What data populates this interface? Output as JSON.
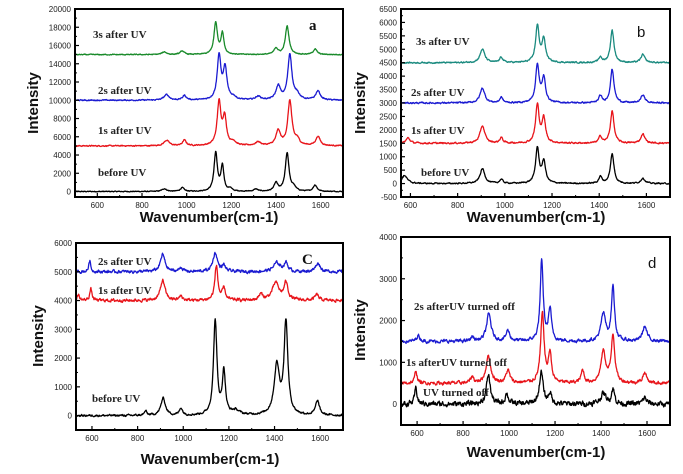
{
  "chart_data": [
    {
      "type": "line",
      "panel": "a",
      "xlabel": "Wavenumber(cm-1)",
      "ylabel": "Intensity",
      "xlim": [
        500,
        1700
      ],
      "ylim": [
        -600,
        20000
      ],
      "xticks": [
        600,
        800,
        1000,
        1200,
        1400,
        1600
      ],
      "yticks": [
        0,
        2000,
        4000,
        6000,
        8000,
        10000,
        12000,
        14000,
        16000,
        18000,
        20000
      ],
      "xtick_labels": [
        "600",
        "800",
        "1000",
        "1200",
        "1400",
        "1600"
      ],
      "ytick_labels": [
        "0",
        "2000",
        "4000",
        "6000",
        "8000",
        "10000",
        "12000",
        "14000",
        "16000",
        "18000",
        "20000"
      ],
      "series": [
        {
          "name": "before UV",
          "color": "#000000",
          "baseline": 0,
          "noise": 80,
          "peaks": [
            [
              900,
              300,
              12
            ],
            [
              980,
              400,
              10
            ],
            [
              1130,
              4200,
              9
            ],
            [
              1160,
              2700,
              8
            ],
            [
              1195,
              300,
              8
            ],
            [
              1310,
              250,
              10
            ],
            [
              1400,
              900,
              10
            ],
            [
              1450,
              4200,
              10
            ],
            [
              1480,
              400,
              10
            ],
            [
              1575,
              700,
              10
            ]
          ]
        },
        {
          "name": "1s after UV",
          "color": "#e8141a",
          "baseline": 5000,
          "noise": 110,
          "peaks": [
            [
              910,
              600,
              14
            ],
            [
              990,
              600,
              10
            ],
            [
              1145,
              4700,
              10
            ],
            [
              1170,
              3000,
              10
            ],
            [
              1210,
              400,
              12
            ],
            [
              1320,
              400,
              14
            ],
            [
              1410,
              1600,
              12
            ],
            [
              1462,
              4900,
              11
            ],
            [
              1495,
              600,
              12
            ],
            [
              1588,
              1000,
              12
            ]
          ]
        },
        {
          "name": "2s after UV",
          "color": "#1b1bd1",
          "baseline": 10000,
          "noise": 110,
          "peaks": [
            [
              910,
              600,
              14
            ],
            [
              990,
              500,
              10
            ],
            [
              1145,
              4800,
              10
            ],
            [
              1172,
              3400,
              10
            ],
            [
              1210,
              300,
              12
            ],
            [
              1320,
              400,
              14
            ],
            [
              1410,
              1500,
              12
            ],
            [
              1462,
              5000,
              11
            ],
            [
              1495,
              600,
              12
            ],
            [
              1588,
              1000,
              12
            ]
          ]
        },
        {
          "name": "3s after UV",
          "color": "#198a2a",
          "baseline": 15000,
          "noise": 90,
          "peaks": [
            [
              900,
              300,
              12
            ],
            [
              980,
              400,
              10
            ],
            [
              1130,
              3500,
              9
            ],
            [
              1160,
              2300,
              8
            ],
            [
              1400,
              700,
              10
            ],
            [
              1450,
              3100,
              10
            ],
            [
              1575,
              600,
              10
            ]
          ]
        }
      ],
      "annotation": "a"
    },
    {
      "type": "line",
      "panel": "b",
      "xlabel": "Wavenumber(cm-1)",
      "ylabel": "Intensity",
      "xlim": [
        560,
        1700
      ],
      "ylim": [
        -500,
        6500
      ],
      "xticks": [
        600,
        800,
        1000,
        1200,
        1400,
        1600
      ],
      "yticks": [
        -500,
        0,
        500,
        1000,
        1500,
        2000,
        2500,
        3000,
        3500,
        4000,
        4500,
        5000,
        5500,
        6000,
        6500
      ],
      "xtick_labels": [
        "600",
        "800",
        "1000",
        "1200",
        "1400",
        "1600"
      ],
      "ytick_labels": [
        "-500",
        "0",
        "500",
        "1000",
        "1500",
        "2000",
        "2500",
        "3000",
        "3500",
        "4000",
        "4500",
        "5000",
        "5500",
        "6000",
        "6500"
      ],
      "series": [
        {
          "name": "before UV",
          "color": "#000000",
          "baseline": 0,
          "noise": 40,
          "peaks": [
            [
              575,
              300,
              14
            ],
            [
              905,
              550,
              12
            ],
            [
              985,
              150,
              8
            ],
            [
              1138,
              1300,
              9
            ],
            [
              1165,
              800,
              9
            ],
            [
              1405,
              250,
              8
            ],
            [
              1455,
              1100,
              9
            ],
            [
              1585,
              200,
              10
            ]
          ]
        },
        {
          "name": "1s after UV",
          "color": "#e8141a",
          "baseline": 1500,
          "noise": 50,
          "peaks": [
            [
              590,
              200,
              10
            ],
            [
              905,
              650,
              12
            ],
            [
              985,
              200,
              8
            ],
            [
              1138,
              1400,
              9
            ],
            [
              1165,
              900,
              9
            ],
            [
              1405,
              250,
              8
            ],
            [
              1455,
              1200,
              9
            ],
            [
              1585,
              350,
              10
            ]
          ]
        },
        {
          "name": "2s after UV",
          "color": "#1b1bd1",
          "baseline": 3000,
          "noise": 50,
          "peaks": [
            [
              905,
              550,
              12
            ],
            [
              985,
              200,
              8
            ],
            [
              1138,
              1400,
              9
            ],
            [
              1165,
              900,
              9
            ],
            [
              1405,
              250,
              8
            ],
            [
              1455,
              1250,
              9
            ],
            [
              1585,
              300,
              10
            ]
          ]
        },
        {
          "name": "3s after UV",
          "color": "#1a8a7f",
          "baseline": 4500,
          "noise": 45,
          "peaks": [
            [
              905,
              500,
              12
            ],
            [
              985,
              200,
              8
            ],
            [
              1138,
              1350,
              9
            ],
            [
              1165,
              850,
              9
            ],
            [
              1405,
              200,
              8
            ],
            [
              1455,
              1200,
              9
            ],
            [
              1585,
              300,
              10
            ]
          ]
        }
      ],
      "annotation": "b"
    },
    {
      "type": "line",
      "panel": "c",
      "xlabel": "Wavenumber(cm-1)",
      "ylabel": "Intensity",
      "xlim": [
        530,
        1700
      ],
      "ylim": [
        -500,
        6000
      ],
      "xticks": [
        600,
        800,
        1000,
        1200,
        1400,
        1600
      ],
      "yticks": [
        0,
        1000,
        2000,
        3000,
        4000,
        5000,
        6000
      ],
      "xtick_labels": [
        "600",
        "800",
        "1000",
        "1200",
        "1400",
        "1600"
      ],
      "ytick_labels": [
        "0",
        "1000",
        "2000",
        "3000",
        "4000",
        "5000",
        "6000"
      ],
      "series": [
        {
          "name": "before UV",
          "color": "#000000",
          "baseline": 0,
          "noise": 60,
          "peaks": [
            [
              835,
              150,
              6
            ],
            [
              912,
              600,
              12
            ],
            [
              990,
              250,
              8
            ],
            [
              1140,
              3300,
              9
            ],
            [
              1178,
              1500,
              8
            ],
            [
              1230,
              150,
              20
            ],
            [
              1410,
              1700,
              14
            ],
            [
              1450,
              3200,
              10
            ],
            [
              1588,
              500,
              10
            ]
          ]
        },
        {
          "name": "1s after UV",
          "color": "#e8141a",
          "baseline": 4000,
          "noise": 90,
          "peaks": [
            [
              540,
              200,
              6
            ],
            [
              595,
              400,
              6
            ],
            [
              910,
              700,
              12
            ],
            [
              990,
              150,
              8
            ],
            [
              1145,
              1200,
              8
            ],
            [
              1178,
              400,
              8
            ],
            [
              1340,
              200,
              10
            ],
            [
              1405,
              600,
              18
            ],
            [
              1450,
              600,
              10
            ],
            [
              1585,
              200,
              10
            ]
          ]
        },
        {
          "name": "2s after UV",
          "color": "#1b1bd1",
          "baseline": 5000,
          "noise": 90,
          "peaks": [
            [
              590,
              400,
              5
            ],
            [
              910,
              600,
              12
            ],
            [
              990,
              150,
              8
            ],
            [
              1140,
              650,
              12
            ],
            [
              1178,
              200,
              8
            ],
            [
              1410,
              300,
              18
            ],
            [
              1450,
              300,
              10
            ],
            [
              1590,
              300,
              12
            ]
          ]
        }
      ],
      "annotation": "C"
    },
    {
      "type": "line",
      "panel": "d",
      "xlabel": "Wavenumber(cm-1)",
      "ylabel": "Intensity",
      "xlim": [
        530,
        1700
      ],
      "ylim": [
        -500,
        4000
      ],
      "xticks": [
        600,
        800,
        1000,
        1200,
        1400,
        1600
      ],
      "yticks": [
        0,
        1000,
        2000,
        3000,
        4000
      ],
      "xtick_labels": [
        "600",
        "800",
        "1000",
        "1200",
        "1400",
        "1600"
      ],
      "ytick_labels": [
        "0",
        "1000",
        "2000",
        "3000",
        "4000"
      ],
      "series": [
        {
          "name": "UV turned off",
          "color": "#000000",
          "baseline": 0,
          "noise": 110,
          "peaks": [
            [
              595,
              400,
              6
            ],
            [
              910,
              700,
              10
            ],
            [
              990,
              250,
              8
            ],
            [
              1140,
              750,
              10
            ],
            [
              1178,
              250,
              8
            ],
            [
              1410,
              250,
              14
            ],
            [
              1452,
              350,
              8
            ],
            [
              1590,
              150,
              10
            ]
          ]
        },
        {
          "name": "1s afterUV turned off",
          "color": "#e8141a",
          "baseline": 500,
          "noise": 70,
          "peaks": [
            [
              595,
              300,
              6
            ],
            [
              840,
              150,
              8
            ],
            [
              910,
              650,
              12
            ],
            [
              995,
              300,
              10
            ],
            [
              1145,
              1650,
              9
            ],
            [
              1178,
              700,
              8
            ],
            [
              1320,
              300,
              8
            ],
            [
              1410,
              750,
              12
            ],
            [
              1452,
              1150,
              9
            ],
            [
              1590,
              250,
              10
            ]
          ]
        },
        {
          "name": "2s afterUV turned off",
          "color": "#1b1bd1",
          "baseline": 1500,
          "noise": 70,
          "peaks": [
            [
              605,
              150,
              8
            ],
            [
              840,
              100,
              8
            ],
            [
              912,
              650,
              12
            ],
            [
              995,
              250,
              10
            ],
            [
              1142,
              1900,
              8
            ],
            [
              1178,
              750,
              8
            ],
            [
              1410,
              650,
              12
            ],
            [
              1452,
              1300,
              8
            ],
            [
              1590,
              350,
              12
            ]
          ]
        }
      ],
      "annotation": "d"
    }
  ]
}
